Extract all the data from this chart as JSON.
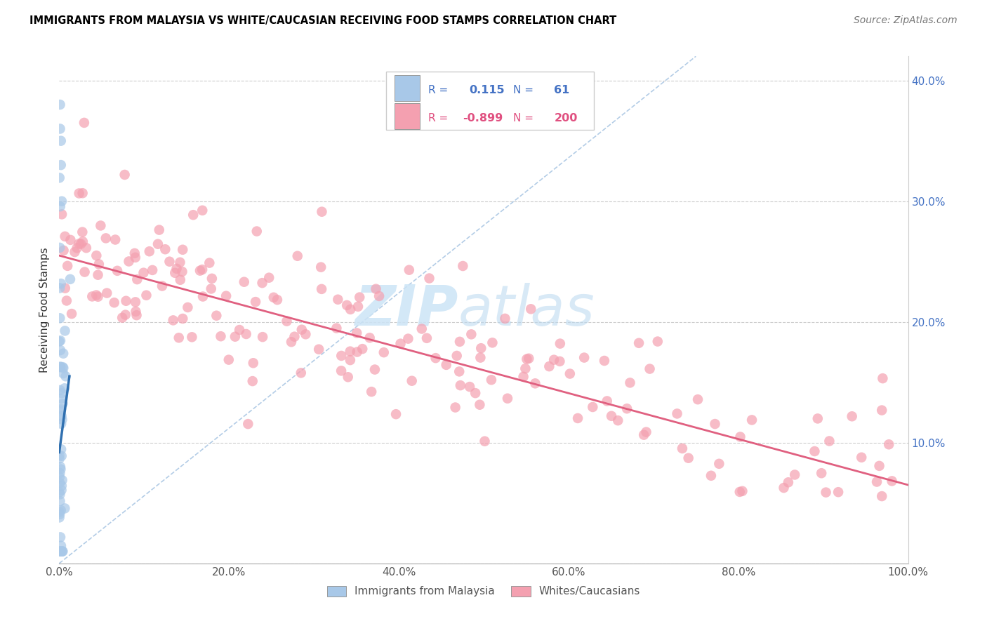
{
  "title": "IMMIGRANTS FROM MALAYSIA VS WHITE/CAUCASIAN RECEIVING FOOD STAMPS CORRELATION CHART",
  "source": "Source: ZipAtlas.com",
  "ylabel": "Receiving Food Stamps",
  "xlim": [
    0,
    1.0
  ],
  "ylim": [
    0,
    0.42
  ],
  "xticks": [
    0.0,
    0.2,
    0.4,
    0.6,
    0.8,
    1.0
  ],
  "xticklabels": [
    "0.0%",
    "20.0%",
    "40.0%",
    "60.0%",
    "80.0%",
    "100.0%"
  ],
  "yticks_right": [
    0.0,
    0.1,
    0.2,
    0.3,
    0.4
  ],
  "yticklabels_right": [
    "",
    "10.0%",
    "20.0%",
    "30.0%",
    "40.0%"
  ],
  "blue_R": "0.115",
  "blue_N": "61",
  "pink_R": "-0.899",
  "pink_N": "200",
  "blue_color": "#a8c8e8",
  "pink_color": "#f4a0b0",
  "blue_line_color": "#3070b0",
  "pink_line_color": "#e06080",
  "legend_labels": [
    "Immigrants from Malaysia",
    "Whites/Caucasians"
  ],
  "pink_line_x0": 0.0,
  "pink_line_y0": 0.255,
  "pink_line_x1": 1.0,
  "pink_line_y1": 0.065,
  "blue_line_x0": 0.0,
  "blue_line_y0": 0.092,
  "blue_line_x1": 0.012,
  "blue_line_y1": 0.155,
  "diag_line_color": "#a0c0e0",
  "diag_line_x0": 0.0,
  "diag_line_y0": 0.0,
  "diag_line_x1": 0.75,
  "diag_line_y1": 0.42
}
